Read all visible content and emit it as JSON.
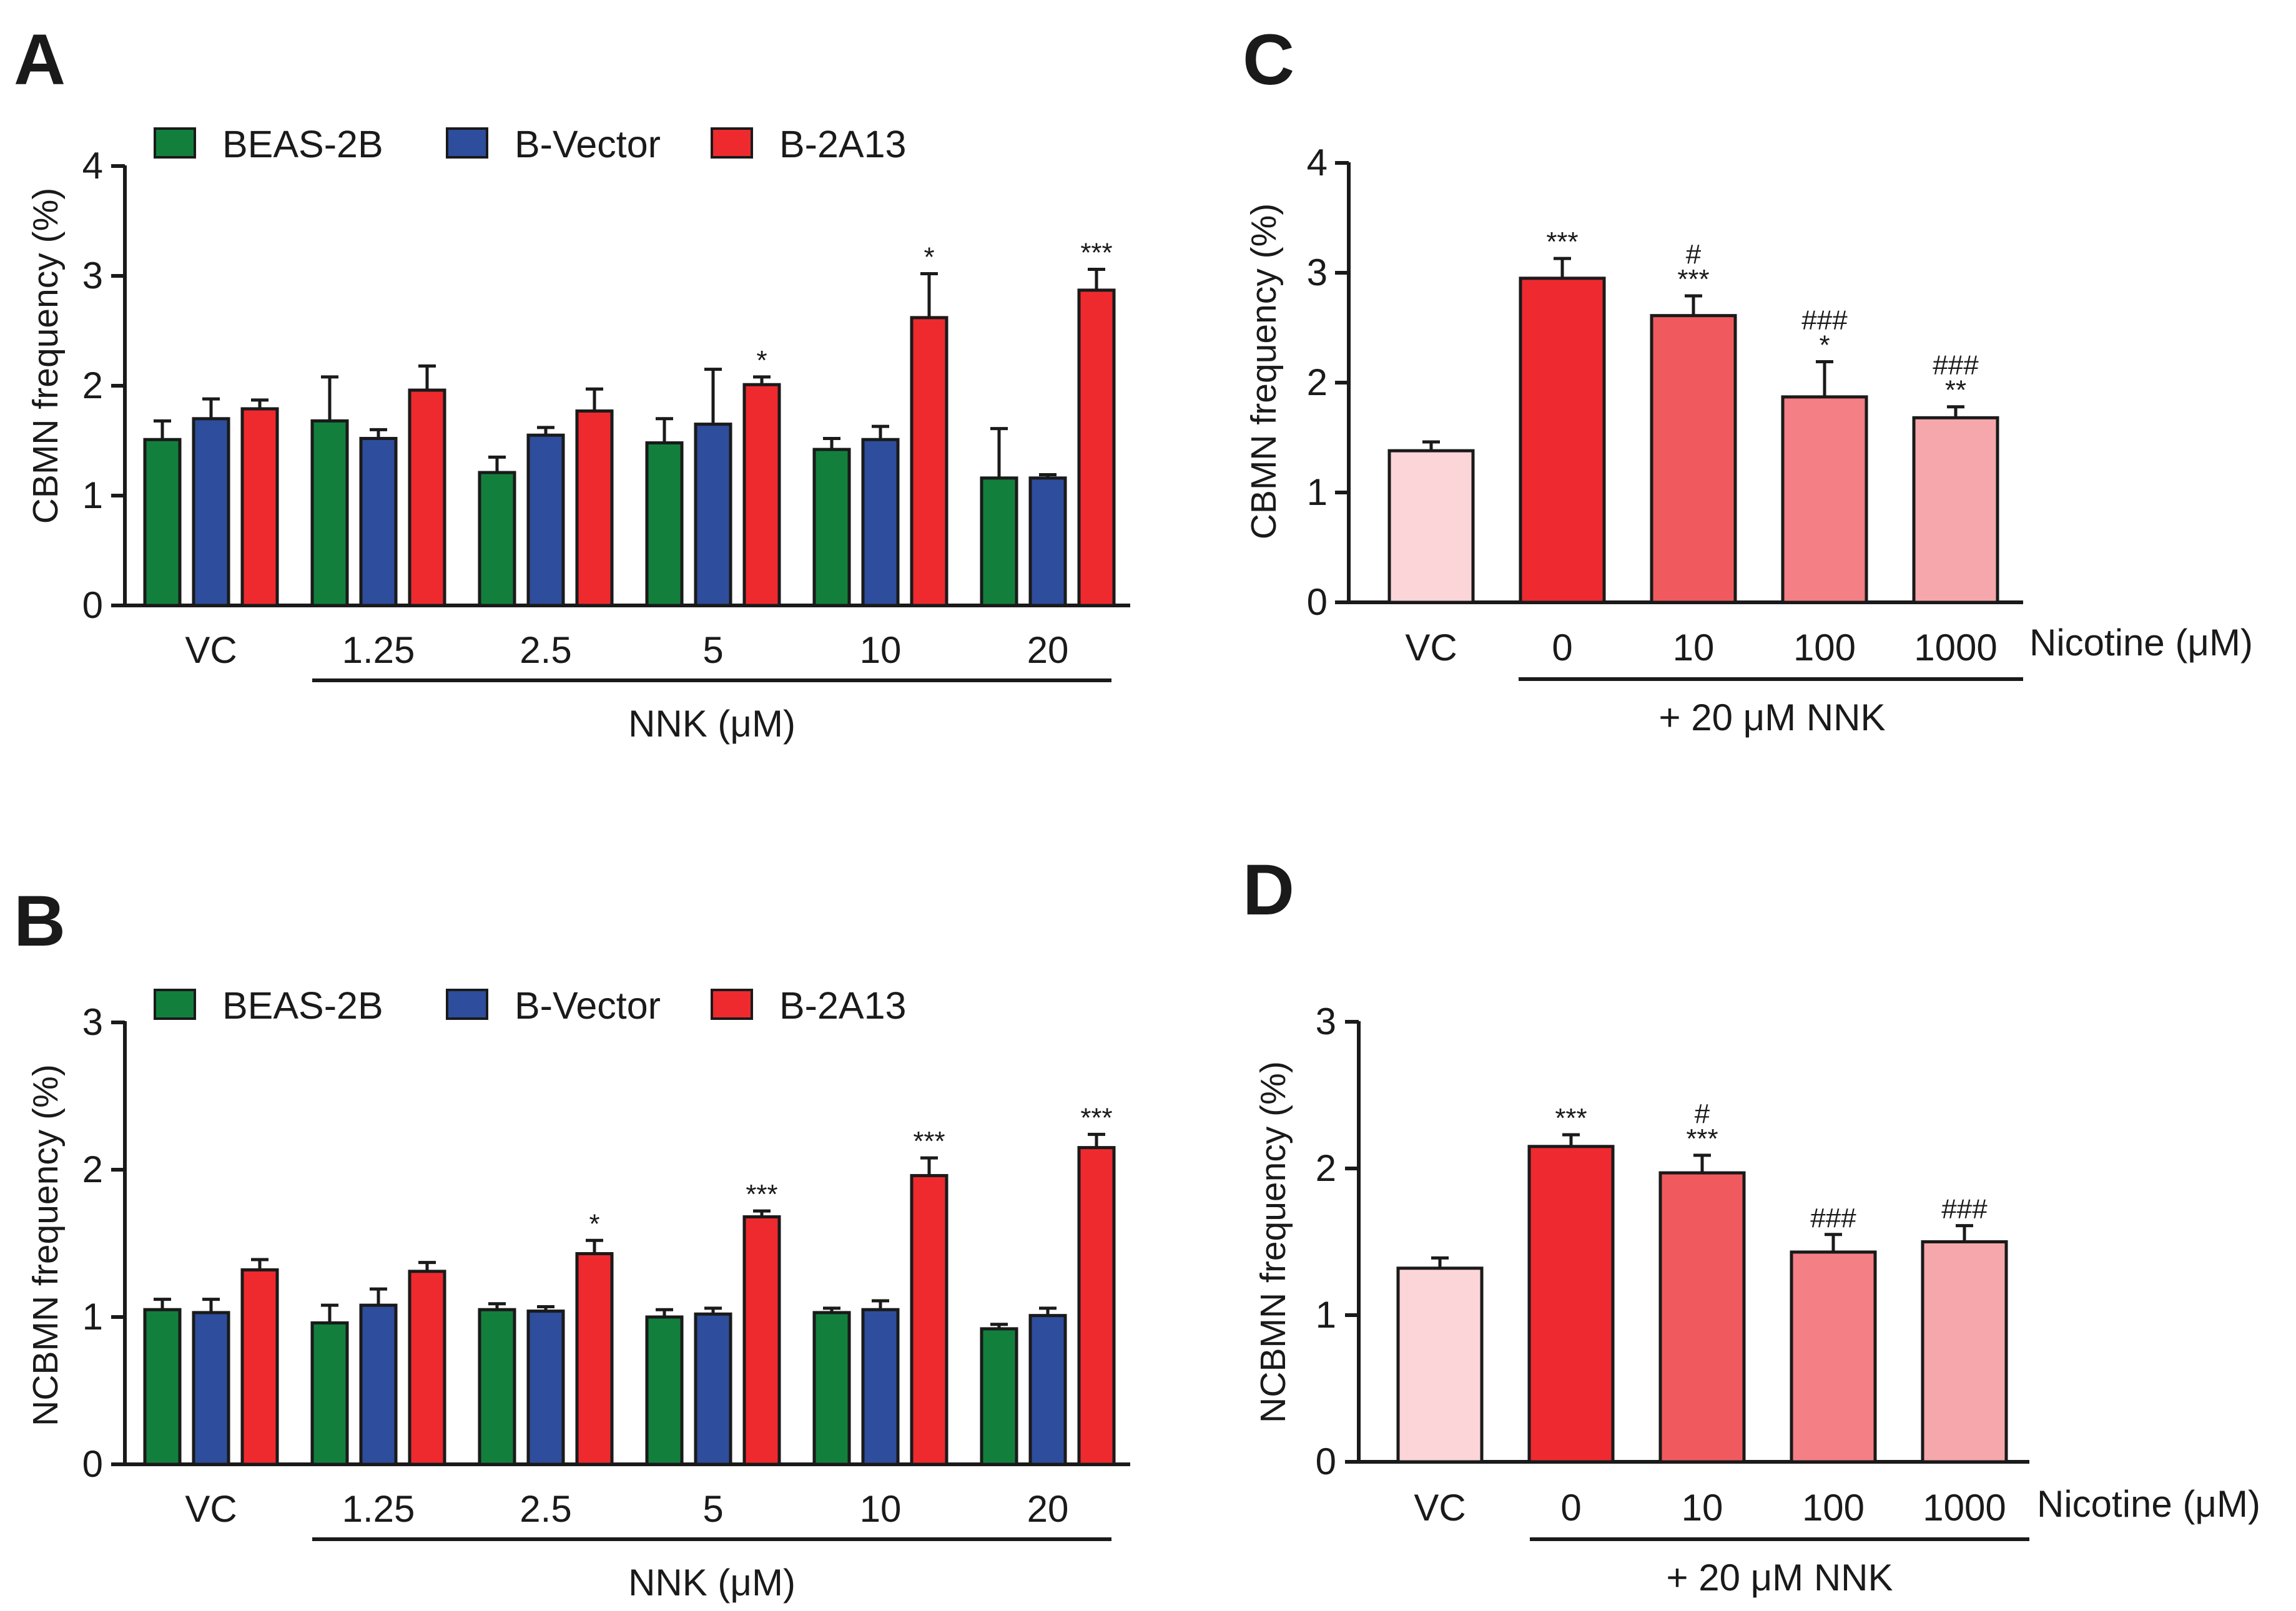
{
  "colors": {
    "beas2b": "#12803c",
    "bvector": "#2e4d9c",
    "b2a13": "#ee2a2f",
    "c_vc": "#fbd5d8",
    "c_0": "#ee2a30",
    "c_10": "#f05a5f",
    "c_100": "#f47f84",
    "c_1000": "#f6a7ab"
  },
  "chart_data": [
    {
      "panel": "A",
      "type": "bar",
      "ylabel": "CBMN frequency (%)",
      "ylim": [
        0,
        4
      ],
      "yticks": [
        "0",
        "1",
        "2",
        "3",
        "4"
      ],
      "categories": [
        "VC",
        "1.25",
        "2.5",
        "5",
        "10",
        "20"
      ],
      "group_label": "NNK (μM)",
      "legend": [
        "BEAS-2B",
        "B-Vector",
        "B-2A13"
      ],
      "series": [
        {
          "name": "BEAS-2B",
          "color_key": "beas2b",
          "values": [
            1.51,
            1.68,
            1.21,
            1.48,
            1.42,
            1.16
          ],
          "errors": [
            0.17,
            0.4,
            0.14,
            0.22,
            0.1,
            0.45
          ],
          "sig": [
            "",
            "",
            "",
            "",
            "",
            ""
          ]
        },
        {
          "name": "B-Vector",
          "color_key": "bvector",
          "values": [
            1.7,
            1.52,
            1.55,
            1.65,
            1.51,
            1.16
          ],
          "errors": [
            0.18,
            0.08,
            0.07,
            0.5,
            0.12,
            0.03
          ],
          "sig": [
            "",
            "",
            "",
            "",
            "",
            ""
          ]
        },
        {
          "name": "B-2A13",
          "color_key": "b2a13",
          "values": [
            1.79,
            1.96,
            1.77,
            2.01,
            2.62,
            2.87
          ],
          "errors": [
            0.08,
            0.22,
            0.2,
            0.07,
            0.4,
            0.19
          ],
          "sig": [
            "",
            "",
            "",
            "*",
            "*",
            "***"
          ]
        }
      ]
    },
    {
      "panel": "B",
      "type": "bar",
      "ylabel": "NCBMN frequency (%)",
      "ylim": [
        0,
        3
      ],
      "yticks": [
        "0",
        "1",
        "2",
        "3"
      ],
      "categories": [
        "VC",
        "1.25",
        "2.5",
        "5",
        "10",
        "20"
      ],
      "group_label": "NNK (μM)",
      "legend": [
        "BEAS-2B",
        "B-Vector",
        "B-2A13"
      ],
      "series": [
        {
          "name": "BEAS-2B",
          "color_key": "beas2b",
          "values": [
            1.05,
            0.96,
            1.05,
            1.0,
            1.03,
            0.92
          ],
          "errors": [
            0.07,
            0.12,
            0.04,
            0.05,
            0.03,
            0.03
          ],
          "sig": [
            "",
            "",
            "",
            "",
            "",
            ""
          ]
        },
        {
          "name": "B-Vector",
          "color_key": "bvector",
          "values": [
            1.03,
            1.08,
            1.04,
            1.02,
            1.05,
            1.01
          ],
          "errors": [
            0.09,
            0.11,
            0.03,
            0.04,
            0.06,
            0.05
          ],
          "sig": [
            "",
            "",
            "",
            "",
            "",
            ""
          ]
        },
        {
          "name": "B-2A13",
          "color_key": "b2a13",
          "values": [
            1.32,
            1.31,
            1.43,
            1.68,
            1.96,
            2.15
          ],
          "errors": [
            0.07,
            0.06,
            0.09,
            0.04,
            0.12,
            0.09
          ],
          "sig": [
            "",
            "",
            "*",
            "***",
            "***",
            "***"
          ]
        }
      ]
    },
    {
      "panel": "C",
      "type": "bar",
      "ylabel": "CBMN frequency (%)",
      "ylim": [
        0,
        4
      ],
      "yticks": [
        "0",
        "1",
        "2",
        "3",
        "4"
      ],
      "categories": [
        "VC",
        "0",
        "10",
        "100",
        "1000"
      ],
      "axis_suffix": "Nicotine (μM)",
      "group_label": "+ 20 μM NNK",
      "values": [
        1.38,
        2.95,
        2.61,
        1.87,
        1.68
      ],
      "errors": [
        0.08,
        0.18,
        0.18,
        0.32,
        0.1
      ],
      "color_keys": [
        "c_vc",
        "c_0",
        "c_10",
        "c_100",
        "c_1000"
      ],
      "sig_star": [
        "",
        "***",
        "***",
        "*",
        "**"
      ],
      "sig_hash": [
        "",
        "",
        "#",
        "###",
        "###"
      ]
    },
    {
      "panel": "D",
      "type": "bar",
      "ylabel": "NCBMN frequency (%)",
      "ylim": [
        0,
        3
      ],
      "yticks": [
        "0",
        "1",
        "2",
        "3"
      ],
      "categories": [
        "VC",
        "0",
        "10",
        "100",
        "1000"
      ],
      "axis_suffix": "Nicotine (μM)",
      "group_label": "+ 20 μM NNK",
      "values": [
        1.32,
        2.15,
        1.97,
        1.43,
        1.5
      ],
      "errors": [
        0.07,
        0.08,
        0.12,
        0.12,
        0.11
      ],
      "color_keys": [
        "c_vc",
        "c_0",
        "c_10",
        "c_100",
        "c_1000"
      ],
      "sig_star": [
        "",
        "***",
        "***",
        "",
        ""
      ],
      "sig_hash": [
        "",
        "",
        "#",
        "###",
        "###"
      ]
    }
  ]
}
